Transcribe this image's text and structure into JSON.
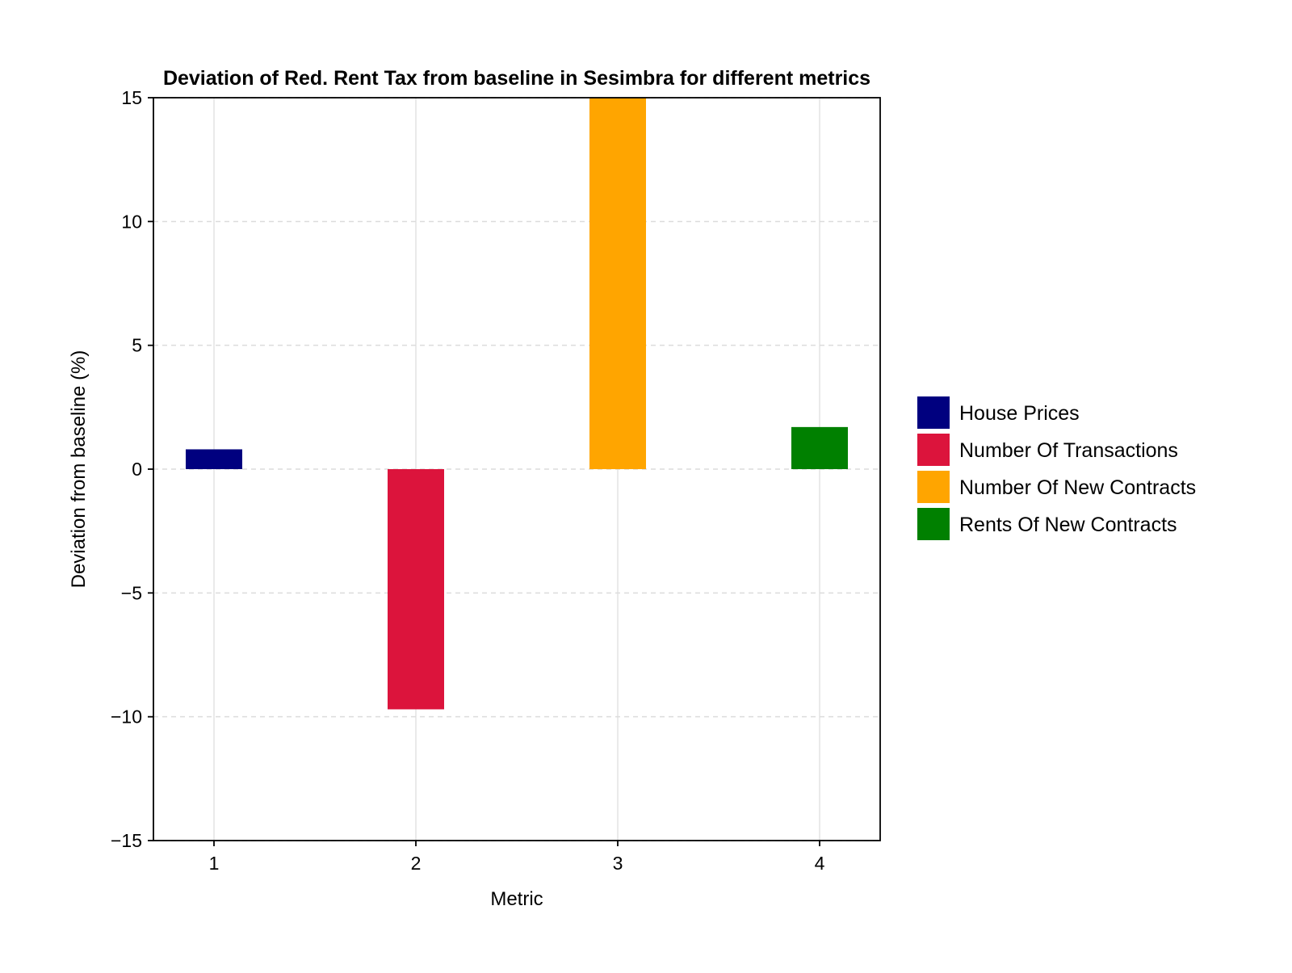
{
  "chart_data": {
    "type": "bar",
    "title": "Deviation of Red. Rent Tax from baseline in Sesimbra for different metrics",
    "xlabel": "Metric",
    "ylabel": "Deviation from baseline (%)",
    "categories": [
      "1",
      "2",
      "3",
      "4"
    ],
    "series": [
      {
        "name": "House Prices",
        "x": 1,
        "value": 0.8,
        "color": "#00007f"
      },
      {
        "name": "Number Of Transactions",
        "x": 2,
        "value": -9.7,
        "color": "#dc143c"
      },
      {
        "name": "Number Of New Contracts",
        "x": 3,
        "value": 15,
        "color": "#ffa500"
      },
      {
        "name": "Rents Of New Contracts",
        "x": 4,
        "value": 1.7,
        "color": "#008000"
      }
    ],
    "xlim": [
      0.7,
      4.3
    ],
    "ylim": [
      -15,
      15
    ],
    "yticks": [
      -15,
      -10,
      -5,
      0,
      5,
      10,
      15
    ],
    "ytick_labels": [
      "−15",
      "−10",
      "−5",
      "0",
      "5",
      "10",
      "15"
    ],
    "xticks": [
      1,
      2,
      3,
      4
    ],
    "grid": true,
    "legend_position": "right"
  }
}
